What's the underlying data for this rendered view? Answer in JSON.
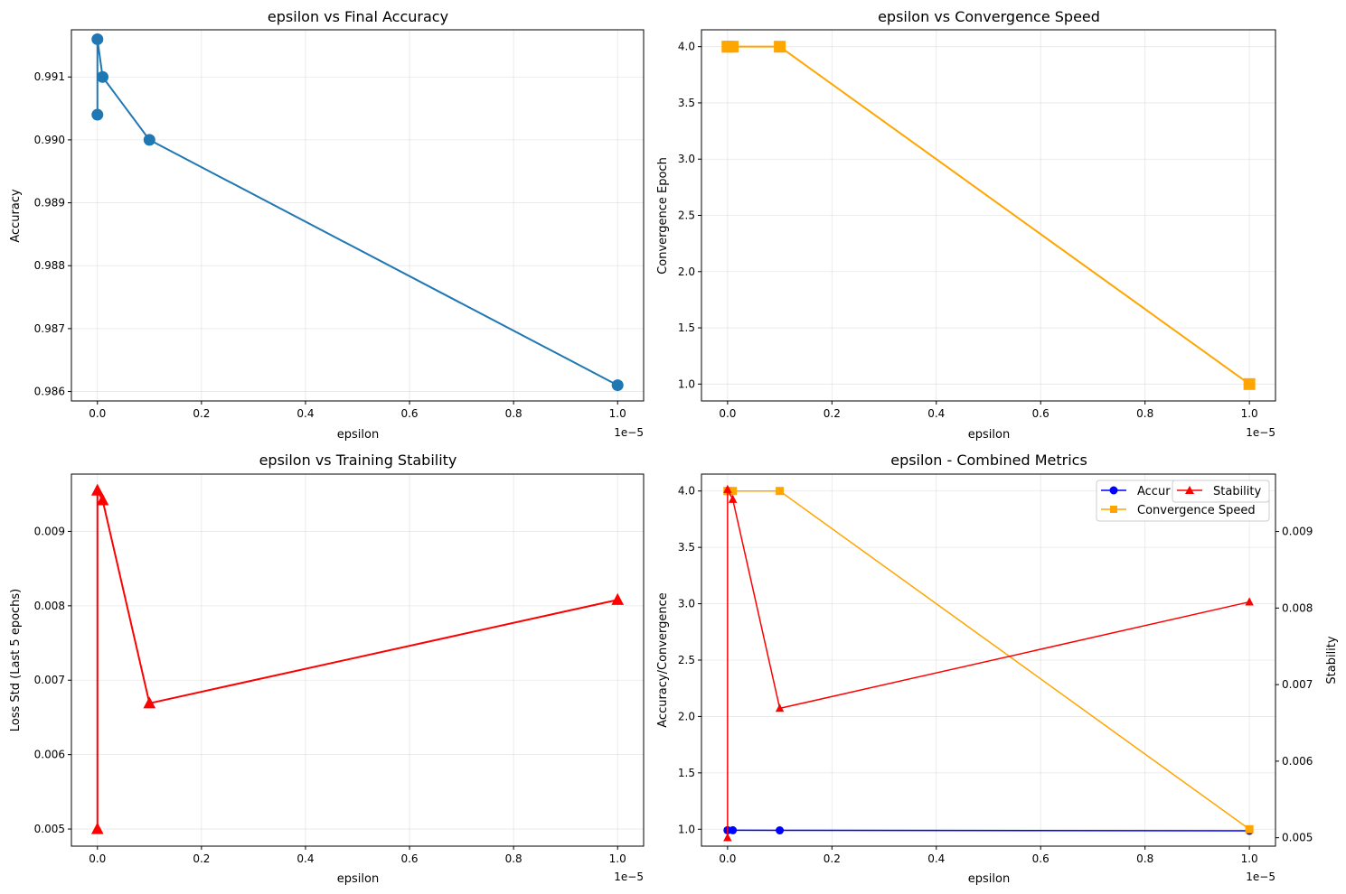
{
  "chart_data": [
    {
      "type": "line",
      "title": "epsilon vs Final Accuracy",
      "xlabel": "epsilon",
      "ylabel": "Accuracy",
      "x_offset_label": "1e−5",
      "xlim": [
        -0.05,
        1.05
      ],
      "ylim": [
        0.98585,
        0.99175
      ],
      "xticks": [
        0.0,
        0.2,
        0.4,
        0.6,
        0.8,
        1.0
      ],
      "xtick_labels": [
        "0.0",
        "0.2",
        "0.4",
        "0.6",
        "0.8",
        "1.0"
      ],
      "yticks": [
        0.986,
        0.987,
        0.988,
        0.989,
        0.99,
        0.991
      ],
      "ytick_labels": [
        "0.986",
        "0.987",
        "0.988",
        "0.989",
        "0.990",
        "0.991"
      ],
      "grid": true,
      "series": [
        {
          "x": [
            0.0,
            0.0,
            0.01,
            0.1,
            1.0
          ],
          "y": [
            0.9904,
            0.9916,
            0.991,
            0.99,
            0.9861
          ],
          "color": "#1f77b4",
          "marker": "circle"
        }
      ]
    },
    {
      "type": "line",
      "title": "epsilon vs Convergence Speed",
      "xlabel": "epsilon",
      "ylabel": "Convergence Epoch",
      "x_offset_label": "1e−5",
      "xlim": [
        -0.05,
        1.05
      ],
      "ylim": [
        0.85,
        4.15
      ],
      "xticks": [
        0.0,
        0.2,
        0.4,
        0.6,
        0.8,
        1.0
      ],
      "xtick_labels": [
        "0.0",
        "0.2",
        "0.4",
        "0.6",
        "0.8",
        "1.0"
      ],
      "yticks": [
        1.0,
        1.5,
        2.0,
        2.5,
        3.0,
        3.5,
        4.0
      ],
      "ytick_labels": [
        "1.0",
        "1.5",
        "2.0",
        "2.5",
        "3.0",
        "3.5",
        "4.0"
      ],
      "grid": true,
      "series": [
        {
          "x": [
            0.0,
            0.0,
            0.01,
            0.1,
            1.0
          ],
          "y": [
            4,
            4,
            4,
            4,
            1
          ],
          "color": "#ffa500",
          "marker": "square"
        }
      ]
    },
    {
      "type": "line",
      "title": "epsilon vs Training Stability",
      "xlabel": "epsilon",
      "ylabel": "Loss Std (Last 5 epochs)",
      "x_offset_label": "1e−5",
      "xlim": [
        -0.05,
        1.05
      ],
      "ylim": [
        0.00477,
        0.00977
      ],
      "xticks": [
        0.0,
        0.2,
        0.4,
        0.6,
        0.8,
        1.0
      ],
      "xtick_labels": [
        "0.0",
        "0.2",
        "0.4",
        "0.6",
        "0.8",
        "1.0"
      ],
      "yticks": [
        0.005,
        0.006,
        0.007,
        0.008,
        0.009
      ],
      "ytick_labels": [
        "0.005",
        "0.006",
        "0.007",
        "0.008",
        "0.009"
      ],
      "grid": true,
      "series": [
        {
          "x": [
            0.0,
            0.0,
            0.01,
            0.1,
            1.0
          ],
          "y": [
            0.005,
            0.00955,
            0.00942,
            0.00669,
            0.00808
          ],
          "color": "#ff0000",
          "marker": "triangle"
        }
      ]
    },
    {
      "type": "line",
      "title": "epsilon - Combined Metrics",
      "xlabel": "epsilon",
      "ylabel": "Accuracy/Convergence",
      "y2label": "Stability",
      "x_offset_label": "1e−5",
      "xlim": [
        -0.05,
        1.05
      ],
      "ylim": [
        0.85,
        4.15
      ],
      "y2lim": [
        0.00489,
        0.00975
      ],
      "xticks": [
        0.0,
        0.2,
        0.4,
        0.6,
        0.8,
        1.0
      ],
      "xtick_labels": [
        "0.0",
        "0.2",
        "0.4",
        "0.6",
        "0.8",
        "1.0"
      ],
      "yticks": [
        1.0,
        1.5,
        2.0,
        2.5,
        3.0,
        3.5,
        4.0
      ],
      "ytick_labels": [
        "1.0",
        "1.5",
        "2.0",
        "2.5",
        "3.0",
        "3.5",
        "4.0"
      ],
      "y2ticks": [
        0.005,
        0.006,
        0.007,
        0.008,
        0.009
      ],
      "y2tick_labels": [
        "0.005",
        "0.006",
        "0.007",
        "0.008",
        "0.009"
      ],
      "grid": true,
      "legend_placement": "top-right",
      "series": [
        {
          "name": "Accuracy",
          "legend_visible_text": "Accur",
          "axis": "left",
          "x": [
            0.0,
            0.0,
            0.01,
            0.1,
            1.0
          ],
          "y": [
            0.9904,
            0.9916,
            0.991,
            0.99,
            0.9861
          ],
          "color": "#0000ff",
          "marker": "circle"
        },
        {
          "name": "Convergence Speed",
          "axis": "left",
          "x": [
            0.0,
            0.0,
            0.01,
            0.1,
            1.0
          ],
          "y": [
            4,
            4,
            4,
            4,
            1
          ],
          "color": "#ffa500",
          "marker": "square"
        },
        {
          "name": "Stability",
          "axis": "right",
          "x": [
            0.0,
            0.0,
            0.01,
            0.1,
            1.0
          ],
          "y": [
            0.005,
            0.00955,
            0.00942,
            0.00669,
            0.00808
          ],
          "color": "#ff0000",
          "marker": "triangle"
        }
      ]
    }
  ]
}
